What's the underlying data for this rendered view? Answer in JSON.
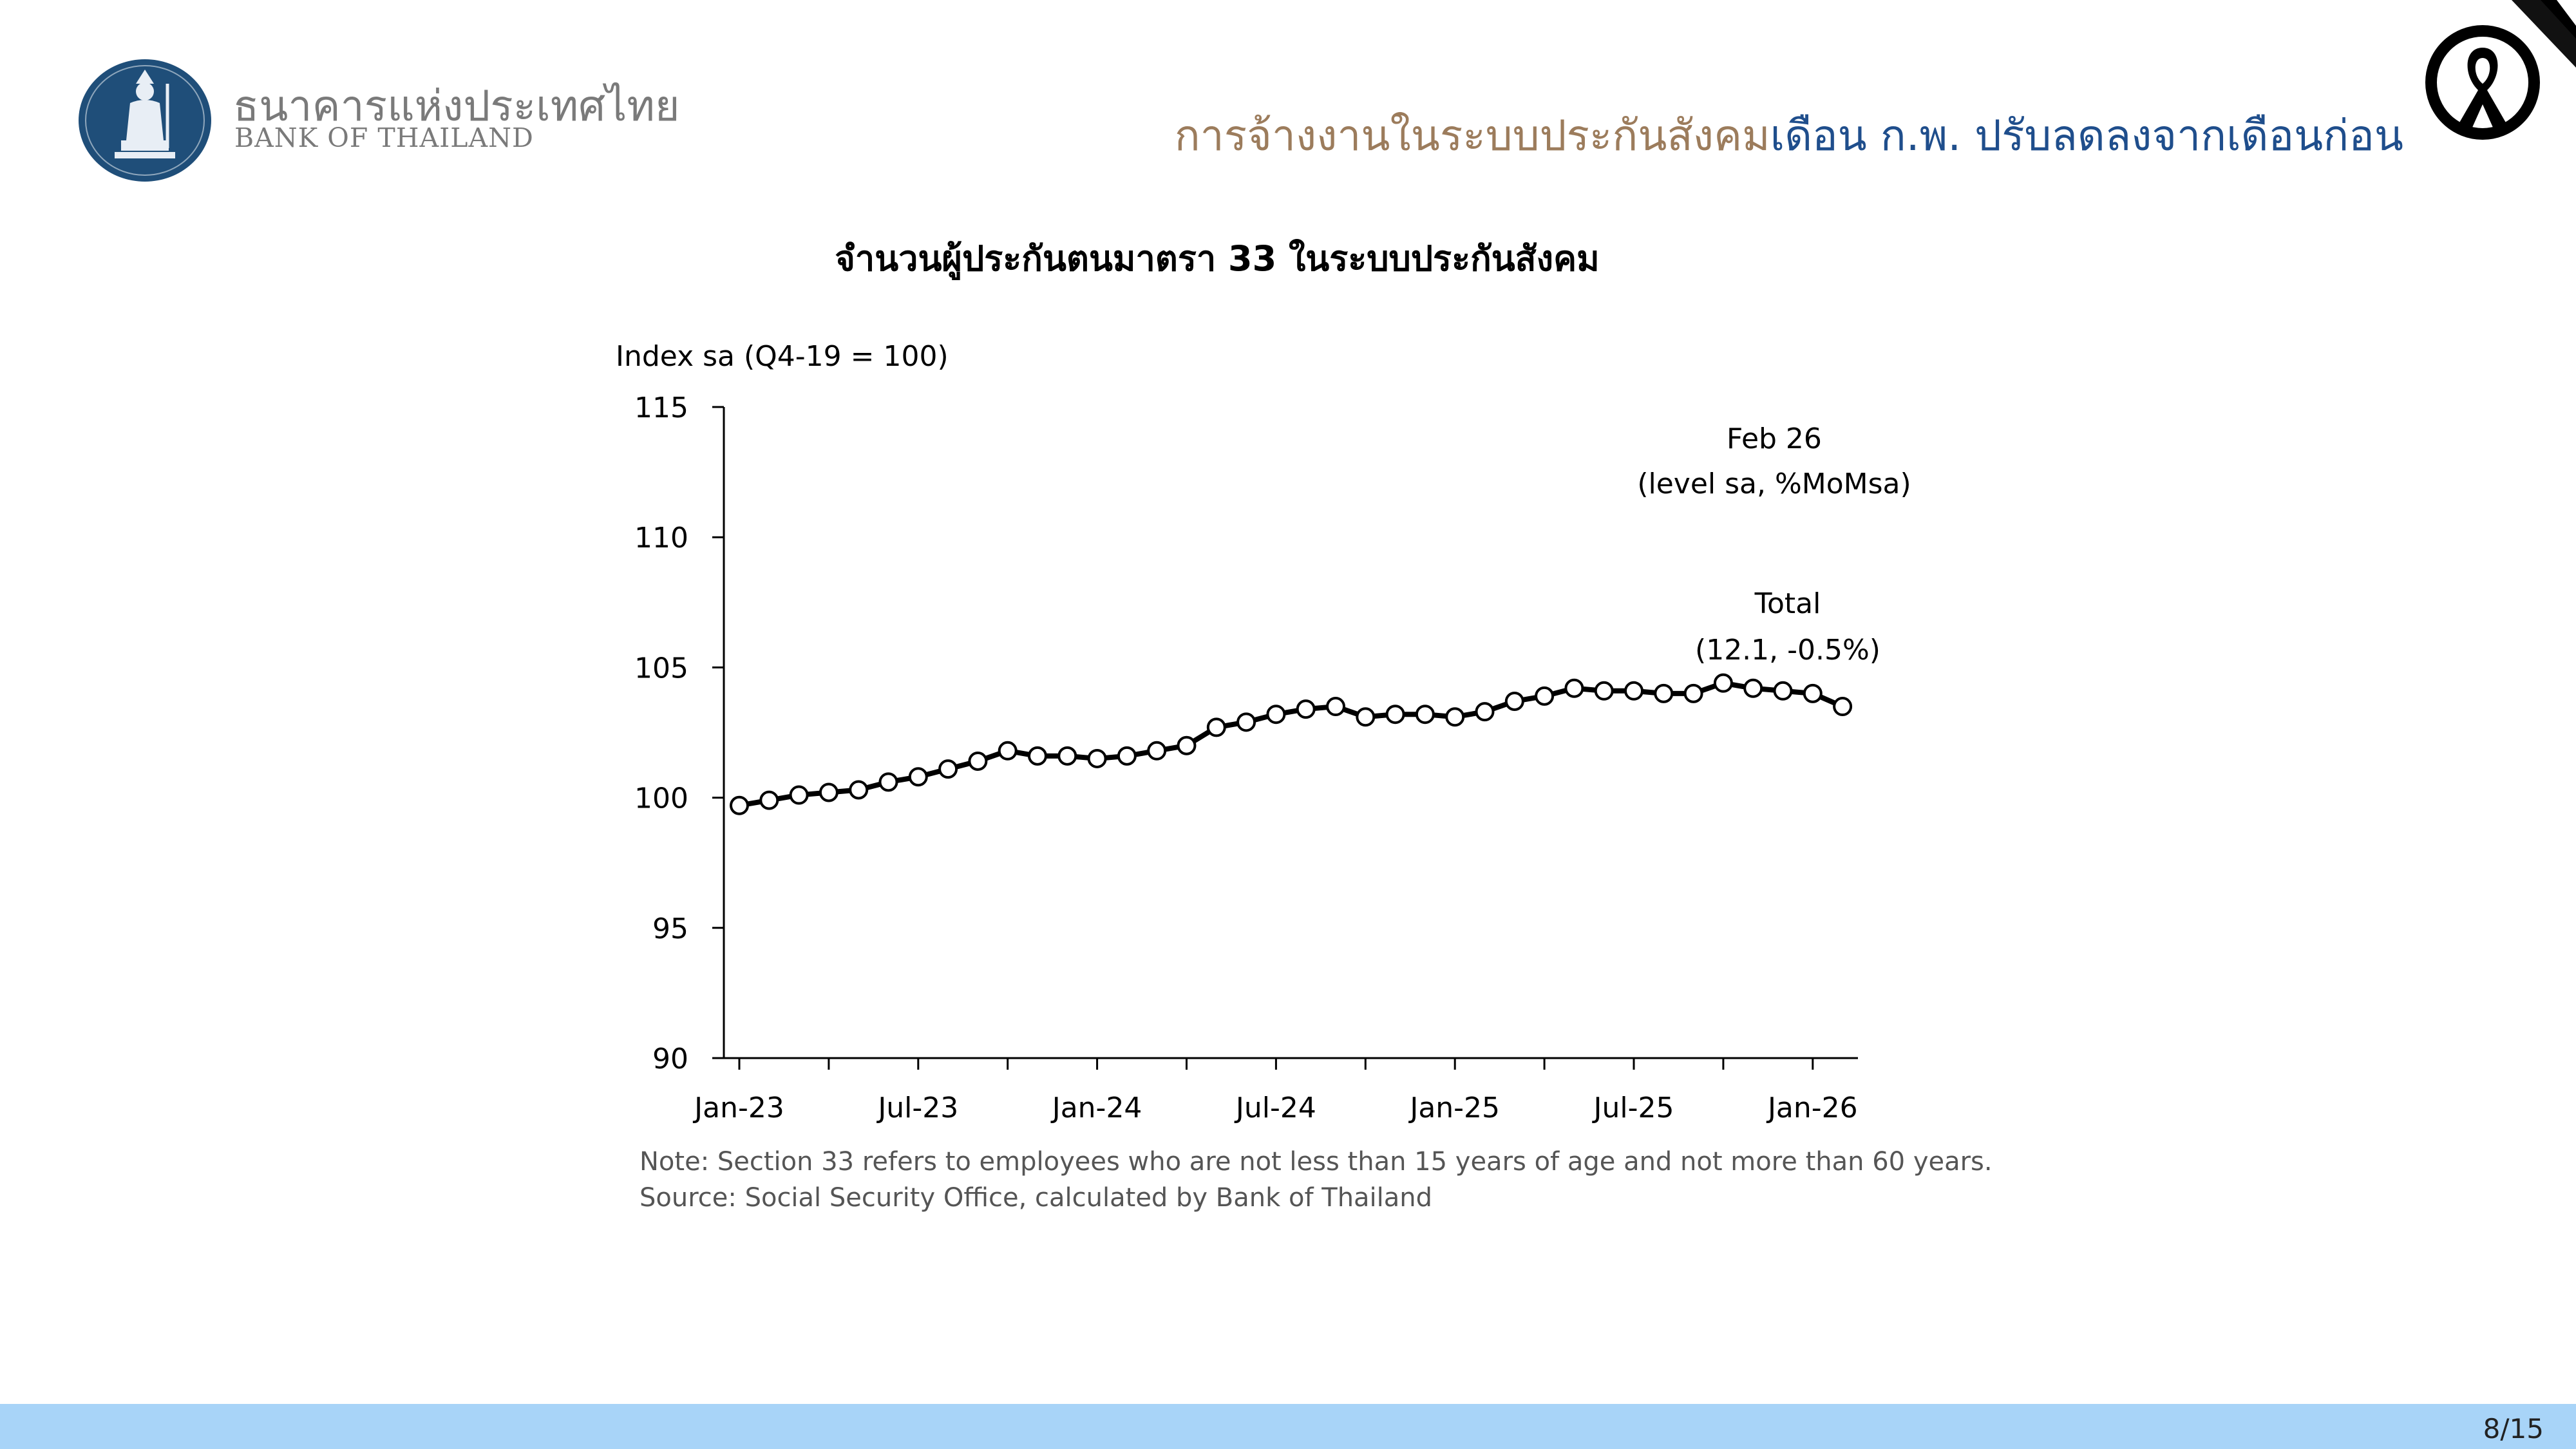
{
  "header": {
    "logo_thai": "ธนาคารแห่งประเทศไทย",
    "logo_english": "BANK OF THAILAND",
    "headline_part1": "การจ้างงานในระบบประกันสังคม",
    "headline_part2": "เดือน ก.พ. ปรับลดลงจากเดือนก่อน",
    "colors": {
      "headline_part1": "#9c7c5c",
      "headline_part2": "#1f4e8c",
      "logo": "#1f4e79"
    },
    "icons": {
      "logo": "bank-of-thailand-seal-icon",
      "ribbon": "mourning-ribbon-icon"
    }
  },
  "chart_data": {
    "type": "line",
    "title": "จำนวนผู้ประกันตนมาตรา 33 ในระบบประกันสังคม",
    "ylabel": "Index sa (Q4-19 = 100)",
    "ylim": [
      90,
      115
    ],
    "yticks": [
      90,
      95,
      100,
      105,
      110,
      115
    ],
    "x_tick_labels": [
      "Jan-23",
      "Jul-23",
      "Jan-24",
      "Jul-24",
      "Jan-25",
      "Jul-25",
      "Jan-26"
    ],
    "x_start": "Jan-23",
    "x_end": "Feb-26",
    "x": [
      "Jan-23",
      "Feb-23",
      "Mar-23",
      "Apr-23",
      "May-23",
      "Jun-23",
      "Jul-23",
      "Aug-23",
      "Sep-23",
      "Oct-23",
      "Nov-23",
      "Dec-23",
      "Jan-24",
      "Feb-24",
      "Mar-24",
      "Apr-24",
      "May-24",
      "Jun-24",
      "Jul-24",
      "Aug-24",
      "Sep-24",
      "Oct-24",
      "Nov-24",
      "Dec-24",
      "Jan-25",
      "Feb-25",
      "Mar-25",
      "Apr-25",
      "May-25",
      "Jun-25",
      "Jul-25",
      "Aug-25",
      "Sep-25",
      "Oct-25",
      "Nov-25",
      "Dec-25",
      "Jan-26",
      "Feb-26"
    ],
    "series": [
      {
        "values": [
          99.7,
          99.9,
          100.1,
          100.2,
          100.3,
          100.6,
          100.8,
          101.1,
          101.4,
          101.8,
          101.6,
          101.6,
          101.5,
          101.6,
          101.8,
          102.0,
          102.7,
          102.9,
          103.2,
          103.4,
          103.5,
          103.1,
          103.2,
          103.2,
          103.1,
          103.3,
          103.7,
          103.9,
          104.2,
          104.1,
          104.1,
          104.0,
          104.0,
          104.4,
          104.2,
          104.1,
          104.0,
          103.5
        ],
        "color": "#000000"
      }
    ],
    "annotations": [
      {
        "line1": "Feb 26",
        "line2": "(level sa, %MoMsa)"
      },
      {
        "line1": "Total",
        "line2": "(12.1, -0.5%)"
      }
    ],
    "grid": false,
    "legend": "none"
  },
  "notes": {
    "note": "Note: Section 33 refers to employees who are not less than 15 years of age and not more than 60 years.",
    "source": "Source: Social Security Office, calculated by Bank of Thailand"
  },
  "footer": {
    "page": "8/15",
    "color": "#a8d4f8"
  }
}
